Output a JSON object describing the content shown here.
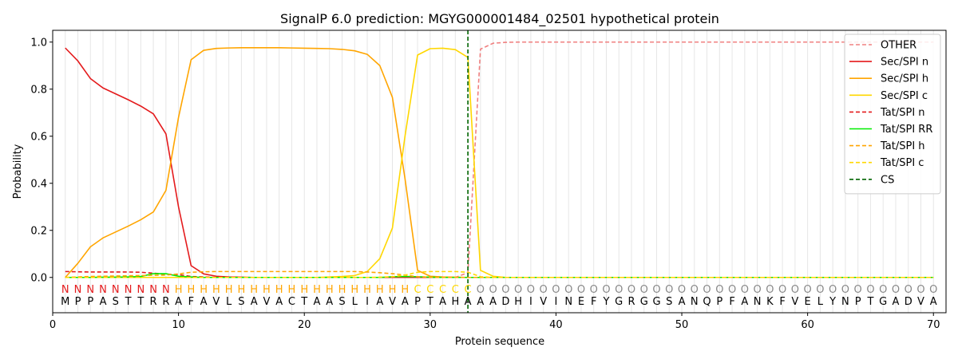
{
  "chart_data": {
    "type": "line",
    "title": "SignalP 6.0 prediction: MGYG000001484_02501 hypothetical protein",
    "xlabel": "Protein sequence",
    "ylabel": "Probability",
    "xlim": [
      0,
      71
    ],
    "ylim": [
      -0.15,
      1.05
    ],
    "xticks": [
      0,
      10,
      20,
      30,
      40,
      50,
      60,
      70
    ],
    "yticks": [
      0.0,
      0.2,
      0.4,
      0.6,
      0.8,
      1.0
    ],
    "ytick_labels": [
      "0.0",
      "0.2",
      "0.4",
      "0.6",
      "0.8",
      "1.0"
    ],
    "grid": "vertical lines at each residue",
    "legend_position": "top-right",
    "x": [
      1,
      2,
      3,
      4,
      5,
      6,
      7,
      8,
      9,
      10,
      11,
      12,
      13,
      14,
      15,
      16,
      17,
      18,
      19,
      20,
      21,
      22,
      23,
      24,
      25,
      26,
      27,
      28,
      29,
      30,
      31,
      32,
      33,
      34,
      35,
      36,
      37,
      38,
      39,
      40,
      41,
      42,
      43,
      44,
      45,
      46,
      47,
      48,
      49,
      50,
      51,
      52,
      53,
      54,
      55,
      56,
      57,
      58,
      59,
      60,
      61,
      62,
      63,
      64,
      65,
      66,
      67,
      68,
      69,
      70
    ],
    "series": [
      {
        "name": "OTHER",
        "color": "#f08080",
        "dash": "dashed",
        "values": [
          0,
          0,
          0,
          0,
          0,
          0,
          0,
          0,
          0,
          0,
          0,
          0,
          0,
          0,
          0,
          0,
          0,
          0,
          0,
          0,
          0,
          0,
          0,
          0,
          0,
          0,
          0,
          0,
          0,
          0,
          0,
          0,
          0.02,
          0.97,
          0.995,
          0.999,
          1,
          1,
          1,
          1,
          1,
          1,
          1,
          1,
          1,
          1,
          1,
          1,
          1,
          1,
          1,
          1,
          1,
          1,
          1,
          1,
          1,
          1,
          1,
          1,
          1,
          1,
          1,
          1,
          1,
          1,
          1,
          1,
          1,
          1
        ]
      },
      {
        "name": "Sec/SPI n",
        "color": "#e41a1c",
        "dash": "solid",
        "values": [
          0.975,
          0.92,
          0.845,
          0.805,
          0.78,
          0.755,
          0.728,
          0.695,
          0.61,
          0.3,
          0.05,
          0.015,
          0.005,
          0.002,
          0.001,
          0,
          0,
          0,
          0,
          0,
          0,
          0,
          0,
          0,
          0,
          0,
          0,
          0,
          0,
          0,
          0,
          0,
          0,
          0,
          0,
          0,
          0,
          0,
          0,
          0,
          0,
          0,
          0,
          0,
          0,
          0,
          0,
          0,
          0,
          0,
          0,
          0,
          0,
          0,
          0,
          0,
          0,
          0,
          0,
          0,
          0,
          0,
          0,
          0,
          0,
          0,
          0,
          0,
          0,
          0
        ]
      },
      {
        "name": "Sec/SPI h",
        "color": "#ffa500",
        "dash": "solid",
        "values": [
          0.0,
          0.06,
          0.13,
          0.168,
          0.193,
          0.218,
          0.245,
          0.278,
          0.37,
          0.68,
          0.925,
          0.965,
          0.973,
          0.975,
          0.976,
          0.976,
          0.976,
          0.976,
          0.975,
          0.974,
          0.973,
          0.972,
          0.969,
          0.963,
          0.948,
          0.9,
          0.765,
          0.42,
          0.03,
          0.005,
          0.002,
          0.001,
          0,
          0,
          0,
          0,
          0,
          0,
          0,
          0,
          0,
          0,
          0,
          0,
          0,
          0,
          0,
          0,
          0,
          0,
          0,
          0,
          0,
          0,
          0,
          0,
          0,
          0,
          0,
          0,
          0,
          0,
          0,
          0,
          0,
          0,
          0,
          0,
          0,
          0
        ]
      },
      {
        "name": "Sec/SPI c",
        "color": "#ffd700",
        "dash": "solid",
        "values": [
          0,
          0,
          0,
          0,
          0,
          0,
          0,
          0,
          0,
          0,
          0,
          0,
          0,
          0,
          0,
          0,
          0,
          0,
          0,
          0,
          0,
          0.002,
          0.004,
          0.008,
          0.025,
          0.08,
          0.21,
          0.6,
          0.945,
          0.972,
          0.974,
          0.968,
          0.935,
          0.03,
          0.005,
          0,
          0,
          0,
          0,
          0,
          0,
          0,
          0,
          0,
          0,
          0,
          0,
          0,
          0,
          0,
          0,
          0,
          0,
          0,
          0,
          0,
          0,
          0,
          0,
          0,
          0,
          0,
          0,
          0,
          0,
          0,
          0,
          0,
          0,
          0
        ]
      },
      {
        "name": "Tat/SPI n",
        "color": "#e41a1c",
        "dash": "dashed",
        "values": [
          0.025,
          0.024,
          0.023,
          0.023,
          0.023,
          0.023,
          0.022,
          0.018,
          0.014,
          0.012,
          0.004,
          0.002,
          0,
          0,
          0,
          0,
          0,
          0,
          0,
          0,
          0,
          0,
          0,
          0,
          0,
          0,
          0,
          0,
          0,
          0,
          0,
          0,
          0,
          0,
          0,
          0,
          0,
          0,
          0,
          0,
          0,
          0,
          0,
          0,
          0,
          0,
          0,
          0,
          0,
          0,
          0,
          0,
          0,
          0,
          0,
          0,
          0,
          0,
          0,
          0,
          0,
          0,
          0,
          0,
          0,
          0,
          0,
          0,
          0,
          0
        ]
      },
      {
        "name": "Tat/SPI RR",
        "color": "#00ee00",
        "dash": "solid",
        "values": [
          0,
          0,
          0,
          0.001,
          0.001,
          0.002,
          0.004,
          0.016,
          0.016,
          0.005,
          0.002,
          0,
          0,
          0,
          0,
          0,
          0,
          0,
          0,
          0,
          0,
          0,
          0,
          0,
          0,
          0,
          0.003,
          0.004,
          0.003,
          0.001,
          0,
          0,
          0,
          0,
          0,
          0,
          0,
          0,
          0,
          0,
          0,
          0,
          0,
          0,
          0,
          0,
          0,
          0,
          0,
          0,
          0,
          0,
          0,
          0,
          0,
          0,
          0,
          0,
          0,
          0,
          0,
          0,
          0,
          0,
          0,
          0,
          0,
          0,
          0,
          0
        ]
      },
      {
        "name": "Tat/SPI h",
        "color": "#ffa500",
        "dash": "dashed",
        "values": [
          0,
          0.002,
          0.004,
          0.005,
          0.006,
          0.007,
          0.008,
          0.009,
          0.01,
          0.015,
          0.022,
          0.024,
          0.025,
          0.025,
          0.025,
          0.025,
          0.025,
          0.025,
          0.025,
          0.025,
          0.025,
          0.025,
          0.025,
          0.025,
          0.023,
          0.02,
          0.016,
          0.01,
          0.003,
          0.001,
          0,
          0,
          0,
          0,
          0,
          0,
          0,
          0,
          0,
          0,
          0,
          0,
          0,
          0,
          0,
          0,
          0,
          0,
          0,
          0,
          0,
          0,
          0,
          0,
          0,
          0,
          0,
          0,
          0,
          0,
          0,
          0,
          0,
          0,
          0,
          0,
          0,
          0,
          0,
          0
        ]
      },
      {
        "name": "Tat/SPI c",
        "color": "#ffd700",
        "dash": "dashed",
        "values": [
          0,
          0,
          0,
          0,
          0,
          0,
          0,
          0,
          0,
          0,
          0,
          0,
          0,
          0,
          0,
          0,
          0,
          0,
          0,
          0,
          0,
          0,
          0,
          0,
          0,
          0.001,
          0.003,
          0.01,
          0.022,
          0.025,
          0.025,
          0.025,
          0.022,
          0.003,
          0,
          0,
          0,
          0,
          0,
          0,
          0,
          0,
          0,
          0,
          0,
          0,
          0,
          0,
          0,
          0,
          0,
          0,
          0,
          0,
          0,
          0,
          0,
          0,
          0,
          0,
          0,
          0,
          0,
          0,
          0,
          0,
          0,
          0,
          0,
          0
        ]
      }
    ],
    "cs": {
      "name": "CS",
      "x": 33,
      "color": "#006400"
    },
    "residues": [
      "M",
      "P",
      "P",
      "A",
      "S",
      "T",
      "T",
      "R",
      "R",
      "A",
      "F",
      "A",
      "V",
      "L",
      "S",
      "A",
      "V",
      "A",
      "C",
      "T",
      "A",
      "A",
      "S",
      "L",
      "I",
      "A",
      "V",
      "A",
      "P",
      "T",
      "A",
      "H",
      "A",
      "A",
      "A",
      "D",
      "H",
      "I",
      "V",
      "I",
      "N",
      "E",
      "F",
      "Y",
      "G",
      "R",
      "G",
      "G",
      "S",
      "A",
      "N",
      "Q",
      "P",
      "F",
      "A",
      "N",
      "K",
      "F",
      "V",
      "E",
      "L",
      "Y",
      "N",
      "P",
      "T",
      "G",
      "A",
      "D",
      "V",
      "A"
    ],
    "labels": [
      "N",
      "N",
      "N",
      "N",
      "N",
      "N",
      "N",
      "N",
      "N",
      "H",
      "H",
      "H",
      "H",
      "H",
      "H",
      "H",
      "H",
      "H",
      "H",
      "H",
      "H",
      "H",
      "H",
      "H",
      "H",
      "H",
      "H",
      "H",
      "C",
      "C",
      "C",
      "C",
      "C",
      "O",
      "O",
      "O",
      "O",
      "O",
      "O",
      "O",
      "O",
      "O",
      "O",
      "O",
      "O",
      "O",
      "O",
      "O",
      "O",
      "O",
      "O",
      "O",
      "O",
      "O",
      "O",
      "O",
      "O",
      "O",
      "O",
      "O",
      "O",
      "O",
      "O",
      "O",
      "O",
      "O",
      "O",
      "O",
      "O",
      "O"
    ],
    "label_colors": {
      "N": "#e41a1c",
      "H": "#ffa500",
      "C": "#ffd700",
      "O": "#888888"
    }
  }
}
